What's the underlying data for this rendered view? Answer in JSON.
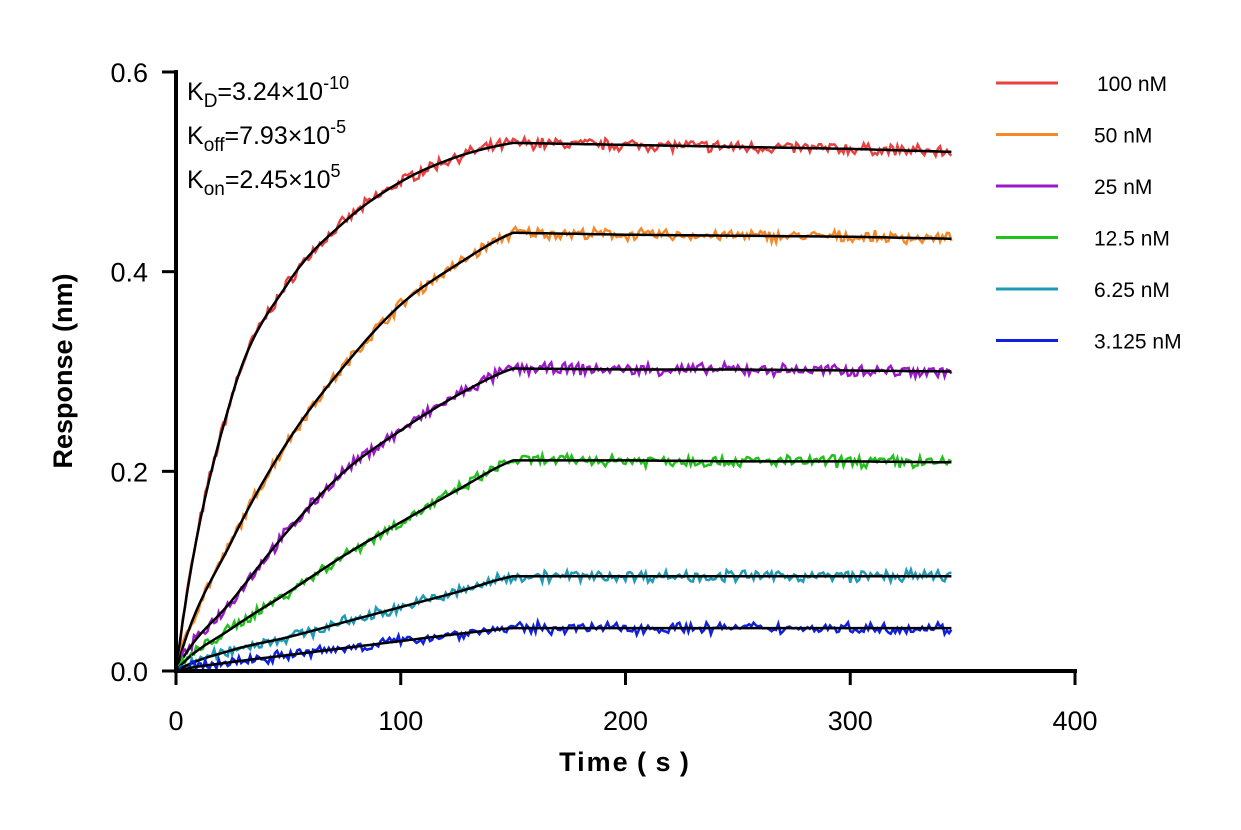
{
  "chart_data": {
    "type": "line",
    "xlabel": "Time ( s )",
    "ylabel": "Response (nm)",
    "xlim": [
      0,
      400
    ],
    "ylim": [
      0,
      0.6
    ],
    "xticks": [
      "0",
      "100",
      "200",
      "300",
      "400"
    ],
    "yticks": [
      "0.0",
      "0.2",
      "0.4",
      "0.6"
    ],
    "grid": false,
    "legend_position": "right",
    "annotations": [
      {
        "k": "K",
        "sub": "D",
        "text": "=3.24×10",
        "sup": "-10"
      },
      {
        "k": "K",
        "sub": "off",
        "text": "=7.93×10",
        "sup": "-5"
      },
      {
        "k": "K",
        "sub": "on",
        "text": "=2.45×10",
        "sup": "5"
      }
    ],
    "fit_color": "#000000",
    "x": [
      0,
      25,
      50,
      75,
      100,
      125,
      150,
      200,
      250,
      300,
      345
    ],
    "series": [
      {
        "name": "100 nM",
        "color": "#e8413f",
        "values": [
          0,
          0.276,
          0.389,
          0.45,
          0.49,
          0.515,
          0.529,
          0.527,
          0.525,
          0.523,
          0.52
        ]
      },
      {
        "name": "50 nM",
        "color": "#f5892a",
        "values": [
          0,
          0.131,
          0.231,
          0.306,
          0.367,
          0.407,
          0.439,
          0.437,
          0.436,
          0.435,
          0.433
        ]
      },
      {
        "name": "25 nM",
        "color": "#9b19c9",
        "values": [
          0,
          0.071,
          0.141,
          0.2,
          0.241,
          0.276,
          0.303,
          0.302,
          0.302,
          0.301,
          0.3
        ]
      },
      {
        "name": "12.5 nM",
        "color": "#22c11e",
        "values": [
          0,
          0.043,
          0.079,
          0.116,
          0.149,
          0.181,
          0.211,
          0.211,
          0.21,
          0.21,
          0.209
        ]
      },
      {
        "name": "6.25 nM",
        "color": "#1f9bb5",
        "values": [
          0,
          0.021,
          0.034,
          0.049,
          0.064,
          0.079,
          0.095,
          0.095,
          0.095,
          0.095,
          0.095
        ]
      },
      {
        "name": "3.125 nM",
        "color": "#1020e0",
        "values": [
          0,
          0.009,
          0.016,
          0.023,
          0.03,
          0.037,
          0.043,
          0.043,
          0.043,
          0.043,
          0.043
        ]
      }
    ]
  }
}
